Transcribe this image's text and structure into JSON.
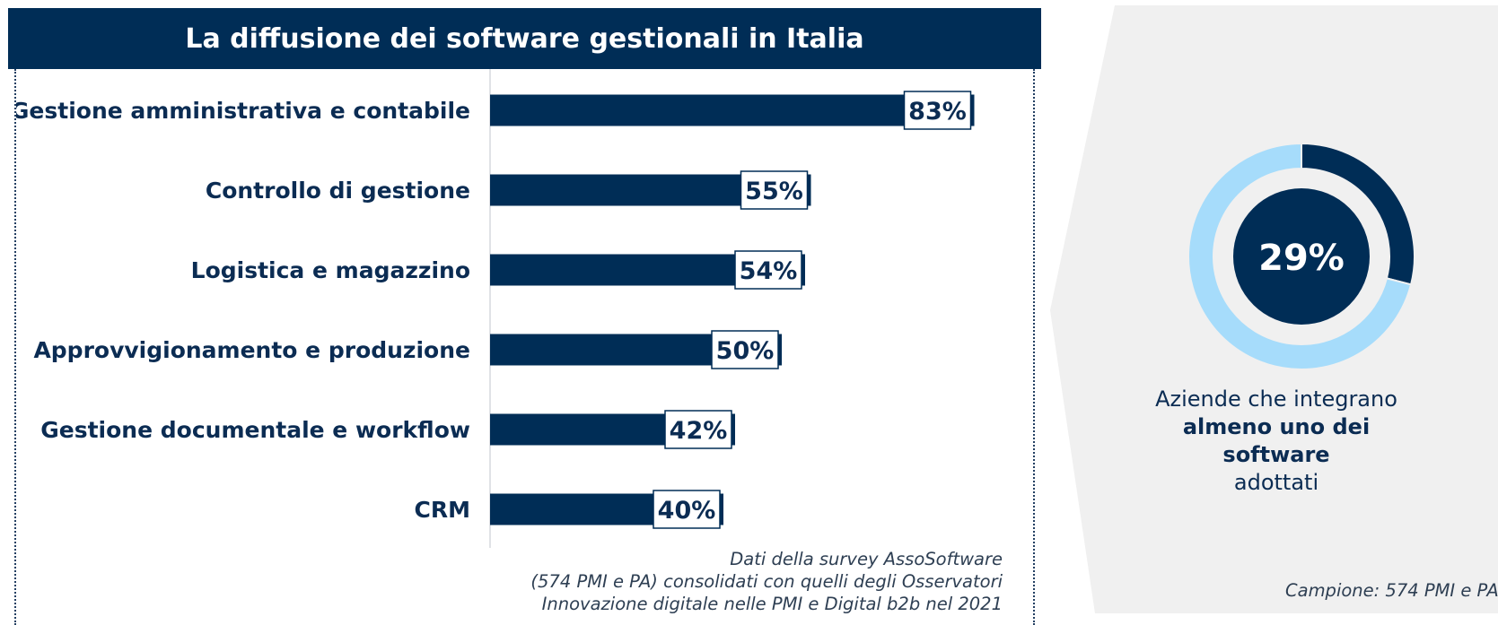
{
  "header": {
    "title": "La diffusione dei software gestionali in Italia"
  },
  "chart_data": [
    {
      "type": "bar",
      "orientation": "horizontal",
      "title": "La diffusione dei software gestionali in Italia",
      "categories": [
        "Gestione amministrativa e contabile",
        "Controllo di gestione",
        "Logistica e magazzino",
        "Approvvigionamento e produzione",
        "Gestione documentale e workflow",
        "CRM"
      ],
      "values": [
        83,
        55,
        54,
        50,
        42,
        40
      ],
      "value_labels": [
        "83%",
        "55%",
        "54%",
        "50%",
        "42%",
        "40%"
      ],
      "unit": "%",
      "xlim": [
        0,
        100
      ],
      "grid": false,
      "bar_color": "#002d56"
    },
    {
      "type": "pie",
      "style": "donut",
      "values": [
        29,
        71
      ],
      "center_label": "29%",
      "colors": [
        "#002d56",
        "#a6dcfb"
      ]
    }
  ],
  "source_note": {
    "lines": [
      "Dati della survey AssoSoftware",
      "(574 PMI e PA) consolidati con quelli degli Osservatori",
      "Innovazione digitale nelle PMI e Digital b2b nel 2021"
    ]
  },
  "side_panel": {
    "caption_line1": "Aziende che integrano",
    "caption_line2": "almeno uno dei software",
    "caption_line3": "adottati",
    "sample_note": "Campione: 574 PMI e PA"
  },
  "colors": {
    "navy": "#002d56",
    "light_blue": "#a6dcfb",
    "panel_gray": "#f0f0f0"
  }
}
